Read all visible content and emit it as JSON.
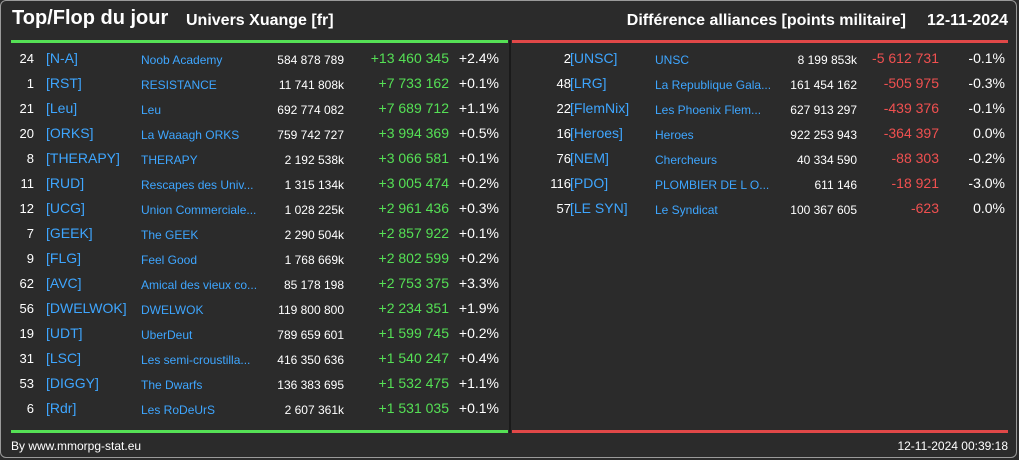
{
  "header": {
    "title": "Top/Flop du jour",
    "subtitle": "Univers Xuange [fr]",
    "right_title": "Différence alliances [points militaire]",
    "date": "12-11-2024"
  },
  "colors": {
    "top": "#55e055",
    "flop": "#e04848",
    "tag": "#3ea6ff"
  },
  "top": [
    {
      "rank": "24",
      "tag": "[N-A]",
      "name": "Noob Academy",
      "points": "584 878 789",
      "diff": "+13 460 345",
      "pct": "+2.4%"
    },
    {
      "rank": "1",
      "tag": "[RST]",
      "name": "RESISTANCE",
      "points": "11 741 808k",
      "diff": "+7 733 162",
      "pct": "+0.1%"
    },
    {
      "rank": "21",
      "tag": "[Leu]",
      "name": "Leu",
      "points": "692 774 082",
      "diff": "+7 689 712",
      "pct": "+1.1%"
    },
    {
      "rank": "20",
      "tag": "[ORKS]",
      "name": "La Waaagh ORKS",
      "points": "759 742 727",
      "diff": "+3 994 369",
      "pct": "+0.5%"
    },
    {
      "rank": "8",
      "tag": "[THERAPY]",
      "name": "THERAPY",
      "points": "2 192 538k",
      "diff": "+3 066 581",
      "pct": "+0.1%"
    },
    {
      "rank": "11",
      "tag": "[RUD]",
      "name": "Rescapes des Univ...",
      "points": "1 315 134k",
      "diff": "+3 005 474",
      "pct": "+0.2%"
    },
    {
      "rank": "12",
      "tag": "[UCG]",
      "name": "Union Commerciale...",
      "points": "1 028 225k",
      "diff": "+2 961 436",
      "pct": "+0.3%"
    },
    {
      "rank": "7",
      "tag": "[GEEK]",
      "name": "The GEEK",
      "points": "2 290 504k",
      "diff": "+2 857 922",
      "pct": "+0.1%"
    },
    {
      "rank": "9",
      "tag": "[FLG]",
      "name": "Feel Good",
      "points": "1 768 669k",
      "diff": "+2 802 599",
      "pct": "+0.2%"
    },
    {
      "rank": "62",
      "tag": "[AVC]",
      "name": "Amical des vieux co...",
      "points": "85 178 198",
      "diff": "+2 753 375",
      "pct": "+3.3%"
    },
    {
      "rank": "56",
      "tag": "[DWELWOK]",
      "name": "DWELWOK",
      "points": "119 800 800",
      "diff": "+2 234 351",
      "pct": "+1.9%"
    },
    {
      "rank": "19",
      "tag": "[UDT]",
      "name": "UberDeut",
      "points": "789 659 601",
      "diff": "+1 599 745",
      "pct": "+0.2%"
    },
    {
      "rank": "31",
      "tag": "[LSC]",
      "name": "Les semi-croustilla...",
      "points": "416 350 636",
      "diff": "+1 540 247",
      "pct": "+0.4%"
    },
    {
      "rank": "53",
      "tag": "[DIGGY]",
      "name": "The Dwarfs",
      "points": "136 383 695",
      "diff": "+1 532 475",
      "pct": "+1.1%"
    },
    {
      "rank": "6",
      "tag": "[Rdr]",
      "name": "Les RoDeUrS",
      "points": "2 607 361k",
      "diff": "+1 531 035",
      "pct": "+0.1%"
    }
  ],
  "flop": [
    {
      "rank": "2",
      "tag": "[UNSC]",
      "name": "UNSC",
      "points": "8 199 853k",
      "diff": "-5 612 731",
      "pct": "-0.1%"
    },
    {
      "rank": "48",
      "tag": "[LRG]",
      "name": "La Republique Gala...",
      "points": "161 454 162",
      "diff": "-505 975",
      "pct": "-0.3%"
    },
    {
      "rank": "22",
      "tag": "[FlemNix]",
      "name": "Les Phoenix Flem...",
      "points": "627 913 297",
      "diff": "-439 376",
      "pct": "-0.1%"
    },
    {
      "rank": "16",
      "tag": "[Heroes]",
      "name": "Heroes",
      "points": "922 253 943",
      "diff": "-364 397",
      "pct": "0.0%"
    },
    {
      "rank": "76",
      "tag": "[NEM]",
      "name": "Chercheurs",
      "points": "40 334 590",
      "diff": "-88 303",
      "pct": "-0.2%"
    },
    {
      "rank": "116",
      "tag": "[PDO]",
      "name": "PLOMBIER DE L O...",
      "points": "611 146",
      "diff": "-18 921",
      "pct": "-3.0%"
    },
    {
      "rank": "57",
      "tag": "[LE SYN]",
      "name": "Le Syndicat",
      "points": "100 367 605",
      "diff": "-623",
      "pct": "0.0%"
    }
  ],
  "footer": {
    "source": "By www.mmorpg-stat.eu",
    "timestamp": "12-11-2024 00:39:18"
  }
}
